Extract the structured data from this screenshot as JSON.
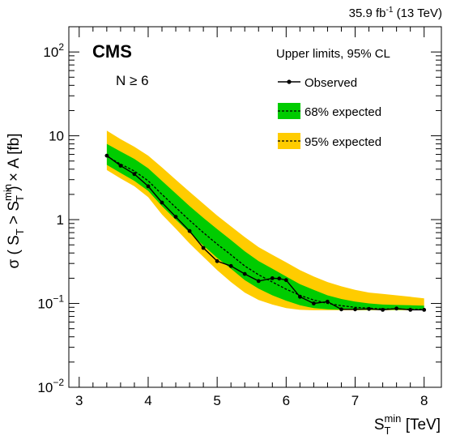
{
  "lumi": {
    "main": "35.9 fb",
    "sup": "-1",
    "tail": " (13 TeV)"
  },
  "cms_label": "CMS",
  "selection": {
    "prefix": "N ",
    "symbol": "≥",
    "value": " 6"
  },
  "legend": {
    "header": "Upper limits, 95% CL",
    "observed": "Observed",
    "exp68": "68% expected",
    "exp95": "95% expected"
  },
  "colors": {
    "band68": "#00cc00",
    "band95": "#ffcc00",
    "observed": "#000000",
    "expected": "#000000"
  },
  "xaxis": {
    "main": "S",
    "sub": "T",
    "sup": "min",
    "unit": " [TeV]"
  },
  "yaxis": {
    "p1": "σ ( S",
    "sub1": "T",
    "p2": " > S",
    "sup2": "min",
    "sub2": "T",
    "p3": " ) × A [fb]"
  },
  "chart_data": {
    "type": "line",
    "xlim": [
      2.85,
      8.25
    ],
    "ylim": [
      0.01,
      200
    ],
    "ylog": true,
    "grid": false,
    "legend_position": "top-right",
    "x_ticks": [
      "3",
      "4",
      "5",
      "6",
      "7",
      "8"
    ],
    "y_ticks": [
      {
        "value": 0.01,
        "base": "10",
        "exp": "−2"
      },
      {
        "value": 0.1,
        "base": "10",
        "exp": "−1"
      },
      {
        "value": 1,
        "base": "1",
        "exp": ""
      },
      {
        "value": 10,
        "base": "10",
        "exp": ""
      },
      {
        "value": 100,
        "base": "10",
        "exp": "2"
      }
    ],
    "series": [
      {
        "name": "Observed",
        "x": [
          3.4,
          3.6,
          3.8,
          4.0,
          4.2,
          4.4,
          4.6,
          4.8,
          5.0,
          5.2,
          5.4,
          5.6,
          5.8,
          5.9,
          6.0,
          6.2,
          6.4,
          6.6,
          6.8,
          7.0,
          7.2,
          7.4,
          7.6,
          7.8,
          8.0
        ],
        "y": [
          5.8,
          4.4,
          3.5,
          2.5,
          1.6,
          1.08,
          0.73,
          0.46,
          0.32,
          0.28,
          0.225,
          0.185,
          0.2,
          0.198,
          0.19,
          0.12,
          0.1,
          0.105,
          0.085,
          0.085,
          0.086,
          0.084,
          0.087,
          0.084,
          0.084
        ]
      },
      {
        "name": "68% expected",
        "x": [
          3.4,
          3.6,
          3.8,
          4.0,
          4.2,
          4.4,
          4.6,
          4.8,
          5.0,
          5.2,
          5.4,
          5.6,
          5.8,
          6.0,
          6.2,
          6.4,
          6.6,
          6.8,
          7.0,
          7.2,
          7.4,
          7.6,
          7.8,
          8.0
        ],
        "median": [
          5.7,
          4.6,
          3.8,
          2.9,
          2.0,
          1.4,
          0.98,
          0.7,
          0.51,
          0.38,
          0.28,
          0.22,
          0.18,
          0.148,
          0.125,
          0.11,
          0.1,
          0.094,
          0.09,
          0.088,
          0.086,
          0.086,
          0.085,
          0.085
        ],
        "low": [
          4.5,
          3.6,
          2.9,
          2.2,
          1.45,
          1.0,
          0.7,
          0.49,
          0.35,
          0.26,
          0.19,
          0.15,
          0.125,
          0.108,
          0.095,
          0.088,
          0.085,
          0.084,
          0.084,
          0.084,
          0.084,
          0.084,
          0.084,
          0.084
        ],
        "high": [
          8.0,
          6.5,
          5.3,
          4.1,
          2.9,
          2.05,
          1.45,
          1.05,
          0.77,
          0.57,
          0.42,
          0.32,
          0.26,
          0.21,
          0.17,
          0.145,
          0.125,
          0.113,
          0.105,
          0.1,
          0.097,
          0.096,
          0.095,
          0.094
        ]
      },
      {
        "name": "95% expected",
        "x": [
          3.4,
          3.6,
          3.8,
          4.0,
          4.2,
          4.4,
          4.6,
          4.8,
          5.0,
          5.2,
          5.4,
          5.6,
          5.8,
          6.0,
          6.2,
          6.4,
          6.6,
          6.8,
          7.0,
          7.2,
          7.4,
          7.6,
          7.8,
          8.0
        ],
        "low": [
          3.9,
          3.1,
          2.5,
          1.85,
          1.15,
          0.78,
          0.52,
          0.36,
          0.25,
          0.18,
          0.135,
          0.11,
          0.097,
          0.088,
          0.084,
          0.083,
          0.083,
          0.083,
          0.083,
          0.083,
          0.083,
          0.083,
          0.083,
          0.083
        ],
        "high": [
          11.5,
          9.1,
          7.4,
          5.8,
          4.2,
          3.0,
          2.15,
          1.55,
          1.12,
          0.83,
          0.62,
          0.47,
          0.38,
          0.31,
          0.25,
          0.21,
          0.18,
          0.16,
          0.145,
          0.135,
          0.13,
          0.125,
          0.12,
          0.115
        ]
      }
    ]
  }
}
